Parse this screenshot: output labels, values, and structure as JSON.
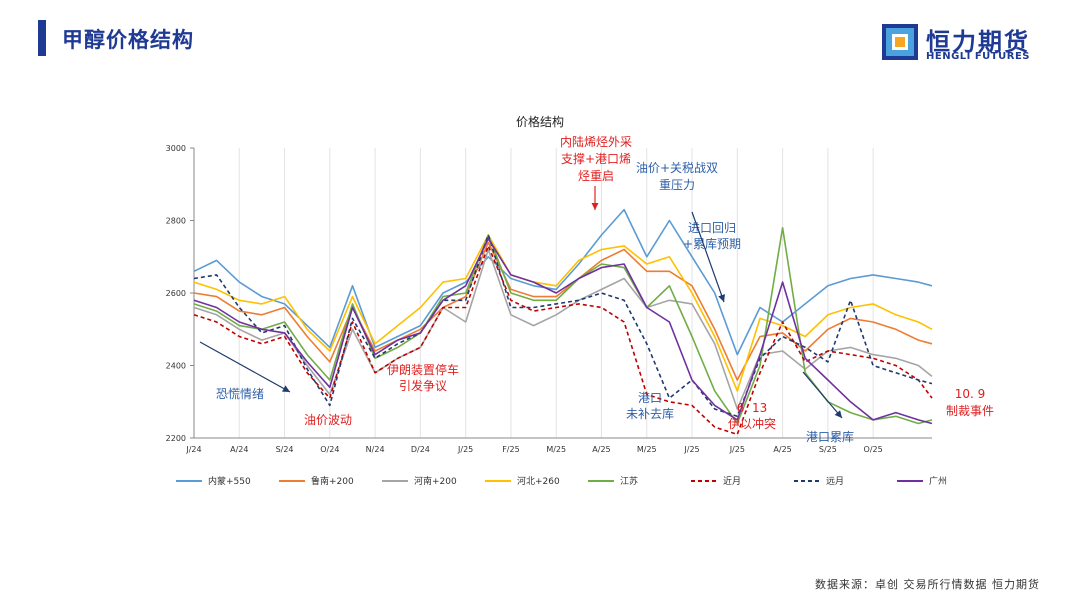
{
  "page": {
    "title": "甲醇价格结构",
    "source": "数据来源：卓创  交易所行情数据  恒力期货"
  },
  "logo": {
    "cn": "恒力期货",
    "en": "HENGLI FUTURES"
  },
  "colors": {
    "brand": "#1f3a93",
    "annot_red": "#e02020",
    "annot_blue": "#2e5fa8",
    "arrow": "#1f3a6e"
  },
  "chart_data": {
    "type": "line",
    "title": "价格结构",
    "xlabel": "",
    "ylabel": "",
    "ylim": [
      2200,
      3000
    ],
    "yticks": [
      2200,
      2400,
      2600,
      2800,
      3000
    ],
    "xticks": [
      "J/24",
      "A/24",
      "S/24",
      "O/24",
      "N/24",
      "D/24",
      "J/25",
      "F/25",
      "M/25",
      "A/25",
      "M/25",
      "J/25",
      "J/25",
      "A/25",
      "S/25",
      "O/25"
    ],
    "x": [
      0,
      0.5,
      1,
      1.5,
      2,
      2.5,
      3,
      3.5,
      4,
      4.5,
      5,
      5.5,
      6,
      6.5,
      7,
      7.5,
      8,
      8.5,
      9,
      9.5,
      10,
      10.5,
      11,
      11.5,
      12,
      12.5,
      13,
      13.5,
      14,
      14.5,
      15,
      15.5,
      16,
      16.3
    ],
    "grid": "vertical",
    "legend": "bottom",
    "series": [
      {
        "name": "内蒙+550",
        "color": "#5b9bd5",
        "dash": "",
        "values": [
          2660,
          2690,
          2630,
          2590,
          2570,
          2510,
          2450,
          2620,
          2450,
          2480,
          2510,
          2600,
          2630,
          2700,
          2640,
          2620,
          2610,
          2680,
          2760,
          2830,
          2700,
          2800,
          2700,
          2600,
          2430,
          2560,
          2520,
          2570,
          2620,
          2640,
          2650,
          2640,
          2630,
          2620
        ]
      },
      {
        "name": "鲁南+200",
        "color": "#ed7d31",
        "dash": "",
        "values": [
          2600,
          2590,
          2550,
          2540,
          2560,
          2480,
          2410,
          2560,
          2440,
          2470,
          2500,
          2560,
          2590,
          2740,
          2610,
          2590,
          2590,
          2640,
          2690,
          2720,
          2660,
          2660,
          2620,
          2500,
          2360,
          2480,
          2490,
          2440,
          2500,
          2530,
          2520,
          2500,
          2470,
          2460
        ]
      },
      {
        "name": "河南+200",
        "color": "#a5a5a5",
        "dash": "",
        "values": [
          2560,
          2540,
          2500,
          2470,
          2490,
          2400,
          2320,
          2500,
          2380,
          2420,
          2450,
          2560,
          2520,
          2720,
          2540,
          2510,
          2540,
          2580,
          2610,
          2640,
          2560,
          2580,
          2570,
          2460,
          2280,
          2430,
          2440,
          2390,
          2440,
          2450,
          2430,
          2420,
          2400,
          2370
        ]
      },
      {
        "name": "河北+260",
        "color": "#ffc000",
        "dash": "",
        "values": [
          2630,
          2610,
          2580,
          2570,
          2590,
          2500,
          2440,
          2590,
          2460,
          2510,
          2560,
          2630,
          2640,
          2760,
          2650,
          2630,
          2620,
          2690,
          2720,
          2730,
          2680,
          2700,
          2600,
          2480,
          2330,
          2530,
          2510,
          2480,
          2540,
          2560,
          2570,
          2540,
          2520,
          2500
        ]
      },
      {
        "name": "江苏",
        "color": "#70ad47",
        "dash": "",
        "values": [
          2570,
          2550,
          2510,
          2500,
          2520,
          2430,
          2360,
          2570,
          2420,
          2450,
          2490,
          2590,
          2600,
          2760,
          2600,
          2580,
          2580,
          2640,
          2680,
          2670,
          2560,
          2620,
          2480,
          2330,
          2240,
          2400,
          2780,
          2380,
          2300,
          2270,
          2250,
          2260,
          2240,
          2250
        ]
      },
      {
        "name": "近月",
        "color": "#c00000",
        "dash": "4,3",
        "values": [
          2540,
          2520,
          2480,
          2460,
          2480,
          2380,
          2310,
          2520,
          2380,
          2420,
          2450,
          2560,
          2560,
          2730,
          2580,
          2550,
          2560,
          2570,
          2560,
          2520,
          2320,
          2300,
          2290,
          2230,
          2210,
          2380,
          2520,
          2410,
          2440,
          2430,
          2420,
          2400,
          2360,
          2310
        ]
      },
      {
        "name": "远月",
        "color": "#1f3a6e",
        "dash": "4,3",
        "values": [
          2640,
          2650,
          2560,
          2490,
          2510,
          2390,
          2290,
          2530,
          2420,
          2460,
          2490,
          2580,
          2580,
          2760,
          2560,
          2560,
          2570,
          2580,
          2600,
          2580,
          2460,
          2310,
          2360,
          2280,
          2260,
          2420,
          2480,
          2450,
          2410,
          2580,
          2400,
          2380,
          2360,
          2350
        ]
      },
      {
        "name": "广州",
        "color": "#7030a0",
        "dash": "",
        "values": [
          2580,
          2560,
          2520,
          2500,
          2490,
          2410,
          2340,
          2560,
          2430,
          2470,
          2490,
          2580,
          2620,
          2750,
          2650,
          2630,
          2600,
          2640,
          2670,
          2680,
          2560,
          2520,
          2360,
          2290,
          2250,
          2430,
          2630,
          2420,
          2360,
          2300,
          2250,
          2270,
          2250,
          2240
        ]
      }
    ],
    "annotations": [
      {
        "text": "内陆烯烃外采",
        "color": "red"
      },
      {
        "text": "支撑+港口烯",
        "color": "red"
      },
      {
        "text": "烃重启",
        "color": "red"
      },
      {
        "text": "油价+关税战双",
        "color": "blue"
      },
      {
        "text": "重压力",
        "color": "blue"
      },
      {
        "text": "进口回归",
        "color": "blue"
      },
      {
        "text": "+累库预期",
        "color": "blue"
      },
      {
        "text": "恐慌情绪",
        "color": "blue"
      },
      {
        "text": "油价波动",
        "color": "red"
      },
      {
        "text": "伊朗装置停车",
        "color": "red"
      },
      {
        "text": "引发争议",
        "color": "red"
      },
      {
        "text": "港口",
        "color": "blue"
      },
      {
        "text": "未补去库",
        "color": "blue"
      },
      {
        "text": "6. 13",
        "color": "red"
      },
      {
        "text": "伊以冲突",
        "color": "red"
      },
      {
        "text": "港口累库",
        "color": "blue"
      },
      {
        "text": "10. 9",
        "color": "red"
      },
      {
        "text": "制裁事件",
        "color": "red"
      }
    ]
  }
}
